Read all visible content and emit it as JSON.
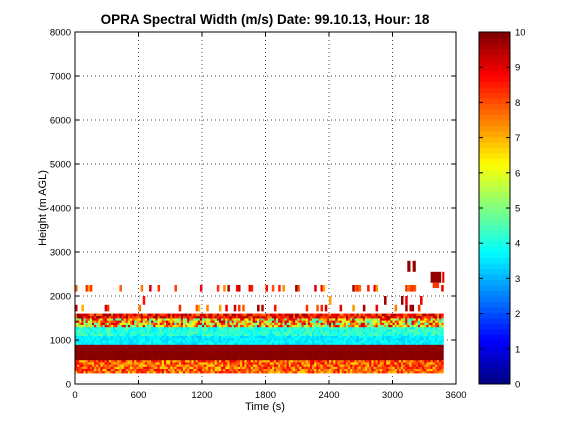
{
  "chart_data": {
    "type": "heatmap",
    "title": "OPRA Spectral Width (m/s)  Date: 99.10.13, Hour: 18",
    "xlabel": "Time (s)",
    "ylabel": "Height (m AGL)",
    "xlim": [
      0,
      3600
    ],
    "ylim": [
      0,
      8000
    ],
    "xticks": [
      "0",
      "600",
      "1200",
      "1800",
      "2400",
      "3000",
      "3600"
    ],
    "yticks": [
      "0",
      "1000",
      "2000",
      "3000",
      "4000",
      "5000",
      "6000",
      "7000",
      "8000"
    ],
    "grid": true,
    "colorbar": {
      "min": 0,
      "max": 10,
      "ticks": [
        "0",
        "1",
        "2",
        "3",
        "4",
        "5",
        "6",
        "7",
        "8",
        "9",
        "10"
      ],
      "colormap": "jet"
    },
    "bands": [
      {
        "t_start": 0,
        "t_end": 3480,
        "h_low": 250,
        "h_high": 550,
        "value_range": [
          6.5,
          9.0
        ]
      },
      {
        "t_start": 0,
        "t_end": 3480,
        "h_low": 550,
        "h_high": 900,
        "value_range": [
          9.8,
          10.0
        ]
      },
      {
        "t_start": 0,
        "t_end": 3480,
        "h_low": 900,
        "h_high": 1100,
        "value_range": [
          3.2,
          4.0
        ]
      },
      {
        "t_start": 0,
        "t_end": 3480,
        "h_low": 1100,
        "h_high": 1300,
        "value_range": [
          3.5,
          4.8
        ]
      },
      {
        "t_start": 0,
        "t_end": 3480,
        "h_low": 1300,
        "h_high": 1500,
        "value_range": [
          4.0,
          9.5
        ]
      },
      {
        "t_start": 0,
        "t_end": 3480,
        "h_low": 1500,
        "h_high": 1600,
        "value_range": [
          7.5,
          10.0
        ]
      }
    ],
    "patches": [
      {
        "t_start": 3140,
        "t_end": 3170,
        "h_low": 2550,
        "h_high": 2800,
        "value": 9.8
      },
      {
        "t_start": 3190,
        "t_end": 3220,
        "h_low": 2550,
        "h_high": 2800,
        "value": 9.8
      },
      {
        "t_start": 3360,
        "t_end": 3460,
        "h_low": 2300,
        "h_high": 2550,
        "value": 9.8
      },
      {
        "t_start": 3380,
        "t_end": 3440,
        "h_low": 2180,
        "h_high": 2300,
        "value": 8.2
      },
      {
        "t_start": 3470,
        "t_end": 3490,
        "h_low": 2300,
        "h_high": 2550,
        "value": 9.0
      }
    ],
    "sparse_layers": [
      {
        "h_low": 2100,
        "h_high": 2250,
        "density": 0.18
      },
      {
        "h_low": 1650,
        "h_high": 1800,
        "density": 0.12
      },
      {
        "h_low": 1800,
        "h_high": 2000,
        "density": 0.04
      }
    ]
  }
}
